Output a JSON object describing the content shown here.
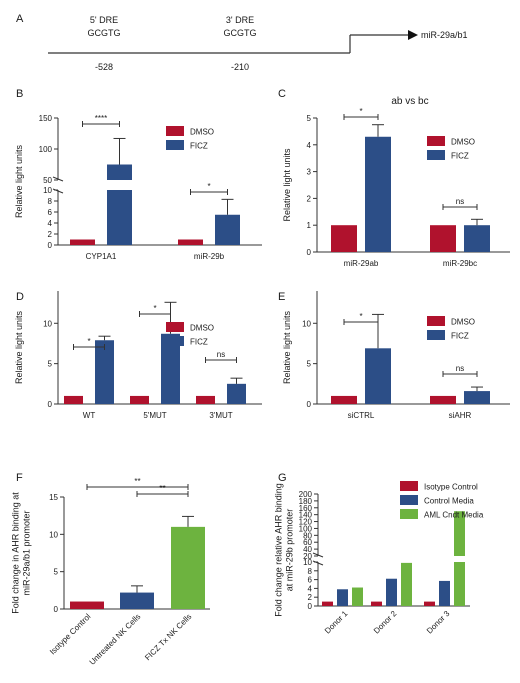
{
  "colors": {
    "red": "#b0122d",
    "blue": "#2c4e87",
    "green": "#6db33f",
    "axis": "#333333"
  },
  "chart_data": [
    {
      "panel": "A",
      "type": "other",
      "elements": [
        {
          "name": "5' DRE",
          "motif": "GCGTG",
          "position": "-528"
        },
        {
          "name": "3' DRE",
          "motif": "GCGTG",
          "position": "-210"
        }
      ],
      "gene": "miR-29a/b1"
    },
    {
      "panel": "B",
      "type": "bar",
      "ylabel": "Relative light units",
      "categories": [
        "CYP1A1",
        "miR-29b"
      ],
      "series": [
        {
          "name": "DMSO",
          "values": [
            1,
            1
          ],
          "errors": [
            0,
            0
          ]
        },
        {
          "name": "FICZ",
          "values": [
            75,
            5.5
          ],
          "errors": [
            42,
            2.8
          ]
        }
      ],
      "yaxis": {
        "broken": true,
        "lower": [
          0,
          10
        ],
        "upper": [
          50,
          150
        ],
        "lower_ticks": [
          "0",
          "2",
          "4",
          "6",
          "8",
          "10"
        ],
        "upper_ticks": [
          "50",
          "100",
          "150"
        ]
      },
      "significance": [
        "****",
        "*"
      ]
    },
    {
      "panel": "C",
      "type": "bar",
      "ylabel": "Relative light units",
      "annotation": "ab vs bc",
      "categories": [
        "miR-29ab",
        "miR-29bc"
      ],
      "series": [
        {
          "name": "DMSO",
          "values": [
            1,
            1
          ],
          "errors": [
            0,
            0
          ]
        },
        {
          "name": "FICZ",
          "values": [
            4.3,
            1.0
          ],
          "errors": [
            0.45,
            0.22
          ]
        }
      ],
      "ylim": [
        0,
        5
      ],
      "yticks": [
        "0",
        "1",
        "2",
        "3",
        "4",
        "5"
      ],
      "significance": [
        "*",
        "ns"
      ]
    },
    {
      "panel": "D",
      "type": "bar",
      "ylabel": "Relative light units",
      "categories": [
        "WT",
        "5'MUT",
        "3'MUT"
      ],
      "series": [
        {
          "name": "DMSO",
          "values": [
            1,
            1,
            1
          ],
          "errors": [
            0,
            0,
            0
          ]
        },
        {
          "name": "FICZ",
          "values": [
            7.9,
            8.7,
            2.5
          ],
          "errors": [
            0.5,
            3.9,
            0.7
          ]
        }
      ],
      "ylim": [
        0,
        14
      ],
      "yticks": [
        "0",
        "5",
        "10"
      ],
      "significance": [
        "*",
        "*",
        "ns"
      ]
    },
    {
      "panel": "E",
      "type": "bar",
      "ylabel": "Relative light units",
      "categories": [
        "siCTRL",
        "siAHR"
      ],
      "series": [
        {
          "name": "DMSO",
          "values": [
            1,
            1
          ],
          "errors": [
            0,
            0
          ]
        },
        {
          "name": "FICZ",
          "values": [
            6.9,
            1.6
          ],
          "errors": [
            4.2,
            0.5
          ]
        }
      ],
      "ylim": [
        0,
        14
      ],
      "yticks": [
        "0",
        "5",
        "10"
      ],
      "significance": [
        "*",
        "ns"
      ]
    },
    {
      "panel": "F",
      "type": "bar",
      "ylabel": [
        "Fold change in AHR binding at",
        "miR-29a/b1 promoter"
      ],
      "categories": [
        "Isotype Control",
        "Untreated NK Cells",
        "FICZ Tx NK Cells"
      ],
      "values": [
        1.0,
        2.2,
        11.0
      ],
      "errors": [
        0,
        0.9,
        1.4
      ],
      "bar_colors": [
        "red",
        "blue",
        "green"
      ],
      "ylim": [
        0,
        15
      ],
      "yticks": [
        "0",
        "5",
        "10",
        "15"
      ],
      "significance": [
        "**",
        "**"
      ]
    },
    {
      "panel": "G",
      "type": "bar",
      "ylabel": [
        "Fold change relative AHR binding",
        "at miR-29b promoter"
      ],
      "categories": [
        "Donor 1",
        "Donor 2",
        "Donor 3"
      ],
      "series": [
        {
          "name": "Isotype Control",
          "values": [
            1,
            1,
            1
          ]
        },
        {
          "name": "Control Media",
          "values": [
            3.8,
            6.2,
            5.7
          ]
        },
        {
          "name": "AML Cndt Media",
          "values": [
            4.2,
            9.8,
            150
          ]
        }
      ],
      "yaxis": {
        "broken": true,
        "lower": [
          0,
          10
        ],
        "upper": [
          20,
          200
        ],
        "lower_ticks": [
          "0",
          "2",
          "4",
          "6",
          "8",
          "10"
        ],
        "upper_ticks": [
          "20",
          "40",
          "60",
          "80",
          "100",
          "120",
          "140",
          "160",
          "180",
          "200"
        ]
      }
    }
  ]
}
